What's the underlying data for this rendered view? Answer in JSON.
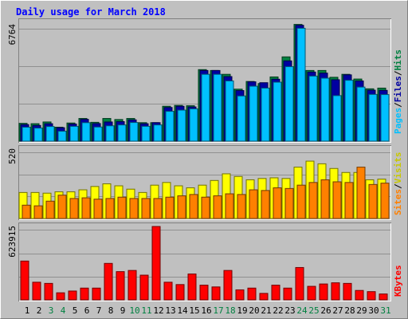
{
  "chart_data": [
    {
      "type": "bar",
      "title": "Daily usage for March 2018",
      "panel": "traffic",
      "ymax_label": "6764",
      "ymax": 6764,
      "categories": [
        "1",
        "2",
        "3",
        "4",
        "5",
        "6",
        "7",
        "8",
        "9",
        "10",
        "11",
        "12",
        "13",
        "14",
        "15",
        "16",
        "17",
        "18",
        "19",
        "20",
        "21",
        "22",
        "23",
        "24",
        "25",
        "26",
        "27",
        "28",
        "29",
        "30",
        "31"
      ],
      "series": [
        {
          "name": "Hits",
          "color": "#008040",
          "values": [
            1020,
            1000,
            1100,
            800,
            1040,
            1300,
            1080,
            1300,
            1240,
            1300,
            1060,
            1060,
            2000,
            2050,
            2030,
            4100,
            4050,
            3830,
            2980,
            3420,
            3300,
            3680,
            4830,
            6690,
            4050,
            4050,
            3660,
            3830,
            3560,
            3000,
            3040
          ]
        },
        {
          "name": "Files",
          "color": "#0000a0",
          "values": [
            950,
            900,
            1000,
            770,
            980,
            1250,
            1010,
            1100,
            1120,
            1220,
            1000,
            1060,
            1930,
            2000,
            1960,
            4050,
            4050,
            3700,
            2900,
            3400,
            3350,
            3550,
            4600,
            6640,
            3960,
            3900,
            3520,
            3800,
            3450,
            2920,
            2910
          ]
        },
        {
          "name": "Pages",
          "color": "#00c0ff",
          "values": [
            800,
            750,
            840,
            570,
            850,
            1060,
            810,
            880,
            930,
            1070,
            850,
            930,
            1710,
            1780,
            1850,
            3830,
            3830,
            3450,
            2590,
            3150,
            3040,
            3380,
            4270,
            6470,
            3730,
            3610,
            2610,
            3490,
            3100,
            2680,
            2670
          ]
        }
      ]
    },
    {
      "type": "bar",
      "panel": "visits",
      "ymax_label": "520",
      "ymax": 520,
      "categories": [
        "1",
        "2",
        "3",
        "4",
        "5",
        "6",
        "7",
        "8",
        "9",
        "10",
        "11",
        "12",
        "13",
        "14",
        "15",
        "16",
        "17",
        "18",
        "19",
        "20",
        "21",
        "22",
        "23",
        "24",
        "25",
        "26",
        "27",
        "28",
        "29",
        "30",
        "31"
      ],
      "series": [
        {
          "name": "Visits",
          "color": "#ffff00",
          "values": [
            195,
            195,
            190,
            200,
            200,
            215,
            240,
            260,
            245,
            220,
            195,
            250,
            270,
            245,
            230,
            250,
            285,
            335,
            315,
            290,
            300,
            305,
            300,
            385,
            430,
            410,
            375,
            345,
            345,
            290,
            295
          ]
        },
        {
          "name": "Sites",
          "color": "#ff8000",
          "values": [
            100,
            95,
            130,
            175,
            150,
            155,
            145,
            150,
            160,
            150,
            150,
            150,
            160,
            170,
            180,
            160,
            170,
            185,
            180,
            215,
            210,
            230,
            225,
            250,
            270,
            290,
            275,
            270,
            385,
            255,
            265
          ]
        }
      ]
    },
    {
      "type": "bar",
      "panel": "kbytes",
      "ymax_label": "623915",
      "ymax": 623915,
      "categories": [
        "1",
        "2",
        "3",
        "4",
        "5",
        "6",
        "7",
        "8",
        "9",
        "10",
        "11",
        "12",
        "13",
        "14",
        "15",
        "16",
        "17",
        "18",
        "19",
        "20",
        "21",
        "22",
        "23",
        "24",
        "25",
        "26",
        "27",
        "28",
        "29",
        "30",
        "31"
      ],
      "series": [
        {
          "name": "KBytes",
          "color": "#ff0000",
          "values": [
            330000,
            150000,
            140000,
            60000,
            75000,
            100000,
            100000,
            310000,
            240000,
            250000,
            210000,
            623915,
            150000,
            130000,
            220000,
            125000,
            110000,
            250000,
            85000,
            100000,
            55000,
            125000,
            100000,
            275000,
            115000,
            135000,
            145000,
            140000,
            80000,
            70000,
            50000
          ]
        }
      ]
    }
  ],
  "day_labels": [
    {
      "text": "1",
      "color": "#000000"
    },
    {
      "text": "2",
      "color": "#000000"
    },
    {
      "text": "3",
      "color": "#008040"
    },
    {
      "text": "4",
      "color": "#008040"
    },
    {
      "text": "5",
      "color": "#000000"
    },
    {
      "text": "6",
      "color": "#000000"
    },
    {
      "text": "7",
      "color": "#000000"
    },
    {
      "text": "8",
      "color": "#000000"
    },
    {
      "text": "9",
      "color": "#000000"
    },
    {
      "text": "10",
      "color": "#008040"
    },
    {
      "text": "11",
      "color": "#008040"
    },
    {
      "text": "12",
      "color": "#000000"
    },
    {
      "text": "13",
      "color": "#000000"
    },
    {
      "text": "14",
      "color": "#000000"
    },
    {
      "text": "15",
      "color": "#000000"
    },
    {
      "text": "16",
      "color": "#000000"
    },
    {
      "text": "17",
      "color": "#008040"
    },
    {
      "text": "18",
      "color": "#008040"
    },
    {
      "text": "19",
      "color": "#000000"
    },
    {
      "text": "20",
      "color": "#000000"
    },
    {
      "text": "21",
      "color": "#000000"
    },
    {
      "text": "22",
      "color": "#000000"
    },
    {
      "text": "23",
      "color": "#000000"
    },
    {
      "text": "24",
      "color": "#008040"
    },
    {
      "text": "25",
      "color": "#008040"
    },
    {
      "text": "26",
      "color": "#000000"
    },
    {
      "text": "27",
      "color": "#000000"
    },
    {
      "text": "28",
      "color": "#000000"
    },
    {
      "text": "29",
      "color": "#000000"
    },
    {
      "text": "30",
      "color": "#000000"
    },
    {
      "text": "31",
      "color": "#008040"
    }
  ],
  "legend_sep": "/",
  "colors": {
    "background": "#c0c0c0",
    "frame_light": "#ffffff",
    "frame_dark": "#808080",
    "title": "#0000ff",
    "grid": "#808080"
  }
}
